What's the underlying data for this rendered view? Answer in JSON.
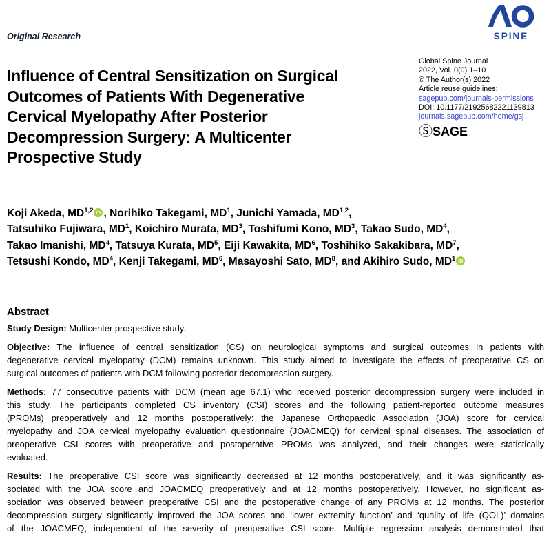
{
  "header": {
    "kicker": "Original Research",
    "logo": {
      "ao": "AO",
      "spine": "SPINE"
    }
  },
  "journal_info": {
    "lines": [
      [
        {
          "t": "Global Spine Journal"
        }
      ],
      [
        {
          "t": "2022, Vol. 0(0) 1–10"
        }
      ],
      [
        {
          "t": "© The Author(s) 2022"
        }
      ],
      [
        {
          "t": "Article reuse guidelines:"
        }
      ],
      [
        {
          "link": "sagepub.com/journals-permissions"
        }
      ],
      [
        {
          "t": "DOI: 10.1177/21925682221139813"
        }
      ],
      [
        {
          "link": "journals.sagepub.com/home/gsj"
        }
      ]
    ],
    "sage_logo": {
      "s": "Ⓢ",
      "text": "SAGE"
    }
  },
  "title_lines": [
    "Influence of Central Sensitization on Surgical",
    "Outcomes of Patients With Degenerative",
    "Cervical Myelopathy After Posterior",
    "Decompression Surgery: A Multicenter",
    "Prospective Study"
  ],
  "authors": {
    "lines": [
      [
        {
          "t": "Koji Akeda, MD"
        },
        {
          "sup": "1,2"
        },
        {
          "icon": "orcid"
        },
        {
          "t": ", Norihiko Takegami, MD"
        },
        {
          "sup": "1"
        },
        {
          "t": ", Junichi Yamada, MD"
        },
        {
          "sup": "1,2"
        },
        {
          "t": ","
        }
      ],
      [
        {
          "t": "Tatsuhiko Fujiwara, MD"
        },
        {
          "sup": "1"
        },
        {
          "t": ", Koichiro Murata, MD"
        },
        {
          "sup": "3"
        },
        {
          "t": ", Toshifumi Kono, MD"
        },
        {
          "sup": "3"
        },
        {
          "t": ", Takao Sudo, MD"
        },
        {
          "sup": "4"
        },
        {
          "t": ","
        }
      ],
      [
        {
          "t": "Takao Imanishi, MD"
        },
        {
          "sup": "4"
        },
        {
          "t": ", Tatsuya Kurata, MD"
        },
        {
          "sup": "5"
        },
        {
          "t": ", Eiji Kawakita, MD"
        },
        {
          "sup": "6"
        },
        {
          "t": ", Toshihiko Sakakibara, MD"
        },
        {
          "sup": "7"
        },
        {
          "t": ","
        }
      ],
      [
        {
          "t": "Tetsushi Kondo, MD"
        },
        {
          "sup": "4"
        },
        {
          "t": ", Kenji Takegami, MD"
        },
        {
          "sup": "6"
        },
        {
          "t": ", Masayoshi Sato, MD"
        },
        {
          "sup": "8"
        },
        {
          "t": ", and Akihiro Sudo, MD"
        },
        {
          "sup": "1"
        },
        {
          "icon": "orcid"
        }
      ]
    ]
  },
  "abstract": {
    "heading": "Abstract",
    "paragraphs": [
      {
        "label": "Study Design:",
        "justify_all": false,
        "lines": [
          "Multicenter prospective study."
        ]
      },
      {
        "label": "Objective:",
        "justify_all": false,
        "lines": [
          "The influence of central sensitization (CS) on neurological symptoms and surgical outcomes in patients with",
          "degenerative cervical myelopathy (DCM) remains unknown. This study aimed to investigate the effects of preoperative CS on",
          "surgical outcomes of patients with DCM following posterior decompression surgery."
        ]
      },
      {
        "label": "Methods:",
        "justify_all": false,
        "lines": [
          "77 consecutive patients with DCM (mean age 67.1) who received posterior decompression surgery were included in",
          "this study. The participants completed CS inventory (CSI) scores and the following patient-reported outcome measures",
          "(PROMs) preoperatively and 12 months postoperatively: the Japanese Orthopaedic Association (JOA) score for cervical",
          "myelopathy and JOA cervical myelopathy evaluation questionnaire (JOACMEQ) for cervical spinal diseases. The association of",
          "preoperative CSI scores with preoperative and postoperative PROMs was analyzed, and their changes were statistically",
          "evaluated."
        ]
      },
      {
        "label": "Results:",
        "justify_all": true,
        "lines": [
          "The preoperative CSI score was significantly decreased at 12 months postoperatively, and it was significantly as-",
          "sociated with the JOA score and JOACMEQ preoperatively and at 12 months postoperatively. However, no significant as-",
          "sociation was observed between preoperative CSI and the postoperative change of any PROMs at 12 months. The posterior",
          "decompression surgery significantly improved the JOA scores and ‘lower extremity function’ and ‘quality of life (QOL)’ domains",
          "of the JOACMEQ, independent of the severity of preoperative CSI score. Multiple regression analysis demonstrated that"
        ]
      }
    ]
  },
  "colors": {
    "logo_blue": "#21469b",
    "link_blue": "#3b41cc",
    "orcid_green": "#a6ce39",
    "text": "#000000"
  }
}
